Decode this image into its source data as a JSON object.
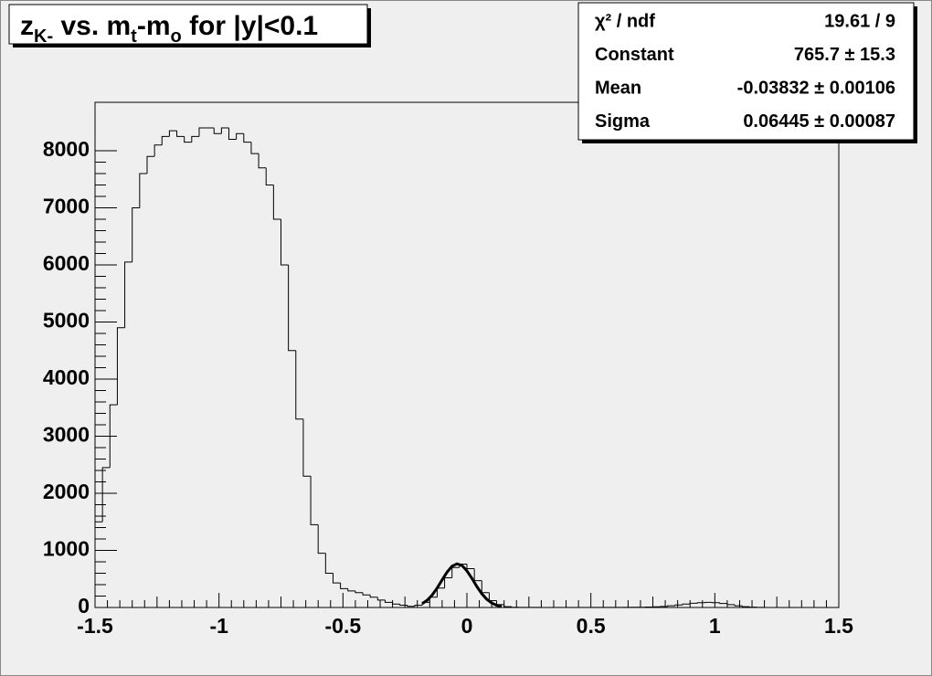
{
  "chart_data": {
    "type": "histogram",
    "title": [
      "z",
      "K-",
      " vs. m",
      "t",
      "-m",
      "o",
      " for |y|<0.1"
    ],
    "bins": [
      -1.5,
      -1.47,
      -1.44,
      -1.41,
      -1.38,
      -1.35,
      -1.32,
      -1.29,
      -1.26,
      -1.23,
      -1.2,
      -1.17,
      -1.14,
      -1.11,
      -1.08,
      -1.05,
      -1.02,
      -0.99,
      -0.96,
      -0.93,
      -0.9,
      -0.87,
      -0.84,
      -0.81,
      -0.78,
      -0.75,
      -0.72,
      -0.69,
      -0.66,
      -0.63,
      -0.6,
      -0.57,
      -0.54,
      -0.51,
      -0.48,
      -0.45,
      -0.42,
      -0.39,
      -0.36,
      -0.33,
      -0.3,
      -0.27,
      -0.24,
      -0.21,
      -0.18,
      -0.15,
      -0.12,
      -0.09,
      -0.06,
      -0.03,
      0,
      0.03,
      0.06,
      0.09,
      0.12,
      0.15,
      0.18,
      0.21,
      0.24,
      0.27,
      0.3,
      0.33,
      0.36,
      0.39,
      0.42,
      0.45,
      0.48,
      0.51,
      0.54,
      0.57,
      0.6,
      0.63,
      0.66,
      0.69,
      0.72,
      0.75,
      0.78,
      0.81,
      0.84,
      0.87,
      0.9,
      0.93,
      0.96,
      0.99,
      1.02,
      1.05,
      1.08,
      1.11,
      1.14,
      1.17,
      1.2,
      1.23,
      1.26,
      1.29,
      1.32,
      1.35,
      1.38,
      1.41,
      1.44,
      1.47,
      1.5
    ],
    "values": [
      1500,
      2450,
      3550,
      4900,
      6050,
      7000,
      7600,
      7900,
      8100,
      8250,
      8350,
      8250,
      8150,
      8250,
      8400,
      8400,
      8300,
      8400,
      8200,
      8300,
      8150,
      7950,
      7700,
      7400,
      6800,
      6000,
      4500,
      3300,
      2300,
      1450,
      950,
      600,
      430,
      330,
      290,
      260,
      220,
      180,
      130,
      90,
      60,
      40,
      20,
      40,
      90,
      180,
      340,
      520,
      700,
      760,
      680,
      470,
      260,
      120,
      50,
      15,
      5,
      3,
      2,
      2,
      1,
      1,
      1,
      1,
      1,
      1,
      1,
      2,
      2,
      2,
      3,
      3,
      4,
      5,
      8,
      12,
      18,
      30,
      45,
      60,
      75,
      85,
      90,
      85,
      70,
      50,
      30,
      15,
      6,
      3,
      1,
      0,
      0,
      0,
      0,
      0,
      0,
      0,
      0,
      0,
      0
    ],
    "color": "#000000",
    "fit": {
      "x": [
        -0.18,
        -0.16,
        -0.14,
        -0.12,
        -0.1,
        -0.08,
        -0.06,
        -0.04,
        -0.02,
        0,
        0.02,
        0.04,
        0.06,
        0.08,
        0.1,
        0.12,
        0.14
      ],
      "values": [
        68,
        128,
        220,
        341,
        483,
        620,
        723,
        765,
        736,
        642,
        511,
        368,
        241,
        144,
        78,
        38,
        17
      ],
      "color": "#000000"
    },
    "stats": [
      [
        "χ² / ndf",
        "19.61 / 9"
      ],
      [
        "Constant",
        "765.7 ± 15.3"
      ],
      [
        "Mean",
        "-0.03832 ± 0.00106"
      ],
      [
        "Sigma",
        "0.06445 ± 0.00087"
      ]
    ],
    "xlim": [
      -1.5,
      1.5
    ],
    "xticks": [
      -1.5,
      -1,
      -0.5,
      0,
      0.5,
      1,
      1.5
    ],
    "ylim": [
      0,
      8848
    ],
    "yticks": [
      0,
      1000,
      2000,
      3000,
      4000,
      5000,
      6000,
      7000,
      8000
    ]
  }
}
